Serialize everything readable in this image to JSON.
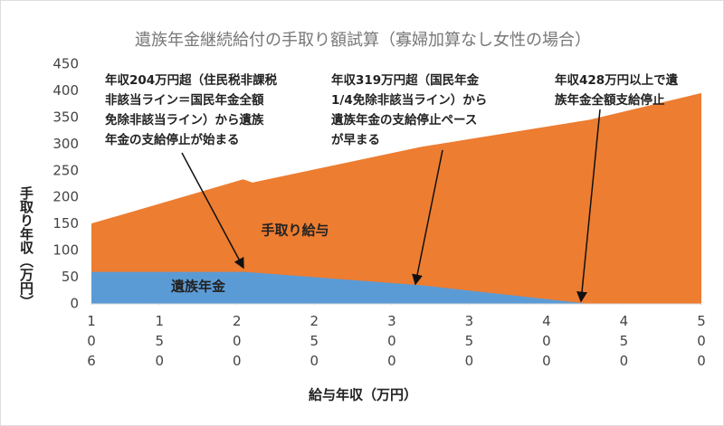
{
  "chart_data": {
    "type": "stacked_area",
    "title": "遺族年金継続給付の手取り額試算（寡婦加算なし女性の場合）",
    "x_label": "給与年収（万円）",
    "y_label": "手取り年収（万円）",
    "x": [
      106,
      204,
      210,
      319,
      428,
      500
    ],
    "series": [
      {
        "name": "遺族年金",
        "color": "#5b9bd5",
        "values": [
          60,
          60,
          59,
          35,
          0,
          0
        ]
      },
      {
        "name": "手取り給与",
        "color": "#ed7d31",
        "values": [
          90,
          173,
          168,
          259,
          345,
          395
        ]
      }
    ],
    "xlim": [
      106,
      500
    ],
    "xticks": [
      106,
      150,
      200,
      250,
      300,
      350,
      400,
      450,
      500
    ],
    "ylim": [
      0,
      450
    ],
    "yticks": [
      0,
      50,
      100,
      150,
      200,
      250,
      300,
      350,
      400,
      450
    ],
    "annotations": [
      {
        "lines": [
          "年収204万円超（住民税非課税",
          "非該当ライン＝国民年金全額",
          "免除非該当ライン）から遺族",
          "年金の支給停止が始まる"
        ]
      },
      {
        "lines": [
          "年収319万円超（国民年金",
          "1/4免除非該当ライン）から",
          "遺族年金の支給停止ペース",
          "が早まる"
        ]
      },
      {
        "lines": [
          "年収428万円以上で遺",
          "族年金全額支給停止"
        ]
      }
    ]
  }
}
